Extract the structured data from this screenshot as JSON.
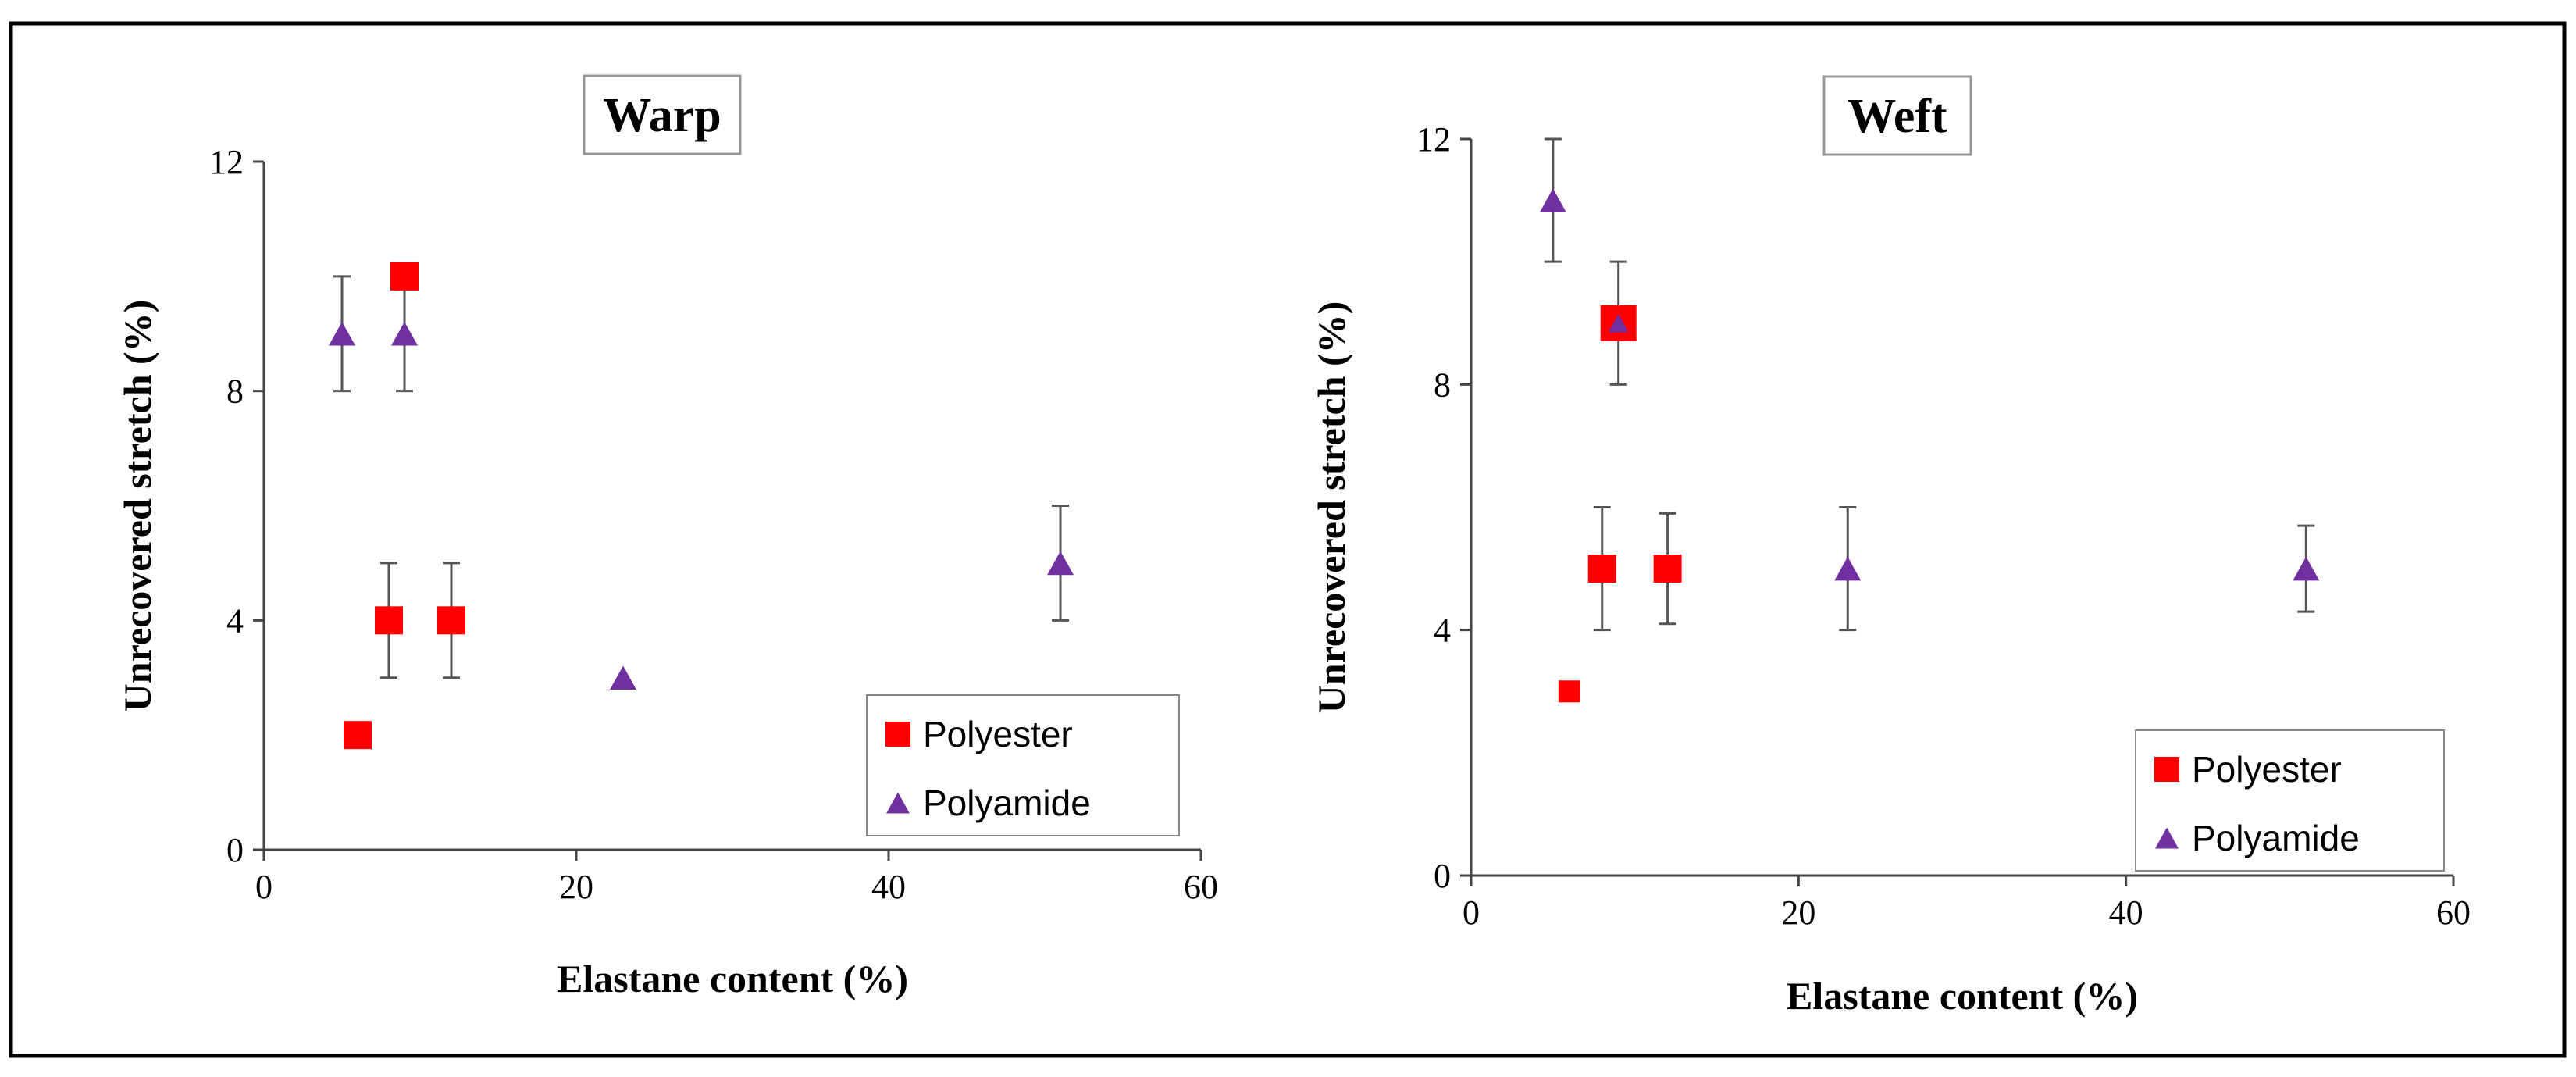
{
  "figure": {
    "description": "Unrecovered stretch versus elastane content for polyester and polyamide fabrics"
  },
  "chart_data": [
    {
      "type": "scatter",
      "title": "Warp",
      "xlabel": "Elastane content (%)",
      "ylabel": "Unrecovered stretch (%)",
      "xlim": [
        0,
        60
      ],
      "ylim": [
        0,
        12
      ],
      "xticks": [
        0,
        20,
        40,
        60
      ],
      "yticks": [
        0,
        4,
        8,
        12
      ],
      "x_tick_labels": [
        "0",
        "20",
        "40",
        "60"
      ],
      "y_tick_labels": [
        "0",
        "4",
        "8",
        "12"
      ],
      "grid": false,
      "legend_position": "bottom-right",
      "series": [
        {
          "name": "Polyester",
          "marker": "square",
          "color": "#ff0000",
          "points": [
            {
              "x": 6,
              "y": 2
            },
            {
              "x": 8,
              "y": 4,
              "err": 1
            },
            {
              "x": 9,
              "y": 10
            },
            {
              "x": 12,
              "y": 4,
              "err": 1
            }
          ]
        },
        {
          "name": "Polyamide",
          "marker": "triangle",
          "color": "#7030a0",
          "points": [
            {
              "x": 5,
              "y": 9,
              "err": 1
            },
            {
              "x": 9,
              "y": 9,
              "err": 1
            },
            {
              "x": 23,
              "y": 3
            },
            {
              "x": 51,
              "y": 5,
              "err": 1
            }
          ]
        }
      ]
    },
    {
      "type": "scatter",
      "title": "Weft",
      "xlabel": "Elastane content (%)",
      "ylabel": "Unrecovered stretch (%)",
      "xlim": [
        0,
        60
      ],
      "ylim": [
        0,
        12
      ],
      "xticks": [
        0,
        20,
        40,
        60
      ],
      "yticks": [
        0,
        4,
        8,
        12
      ],
      "x_tick_labels": [
        "0",
        "20",
        "40",
        "60"
      ],
      "y_tick_labels": [
        "0",
        "4",
        "8",
        "12"
      ],
      "grid": false,
      "legend_position": "bottom-right",
      "series": [
        {
          "name": "Polyester",
          "marker": "square",
          "color": "#ff0000",
          "points": [
            {
              "x": 6,
              "y": 3
            },
            {
              "x": 8,
              "y": 5,
              "err": 1
            },
            {
              "x": 9,
              "y": 9,
              "err": 1
            },
            {
              "x": 12,
              "y": 5,
              "err": 0.9
            }
          ]
        },
        {
          "name": "Polyamide",
          "marker": "triangle",
          "color": "#7030a0",
          "points": [
            {
              "x": 5,
              "y": 11,
              "err": 1
            },
            {
              "x": 9,
              "y": 9
            },
            {
              "x": 23,
              "y": 5,
              "err": 1
            },
            {
              "x": 51,
              "y": 5,
              "err": 0.7
            }
          ]
        }
      ]
    }
  ]
}
